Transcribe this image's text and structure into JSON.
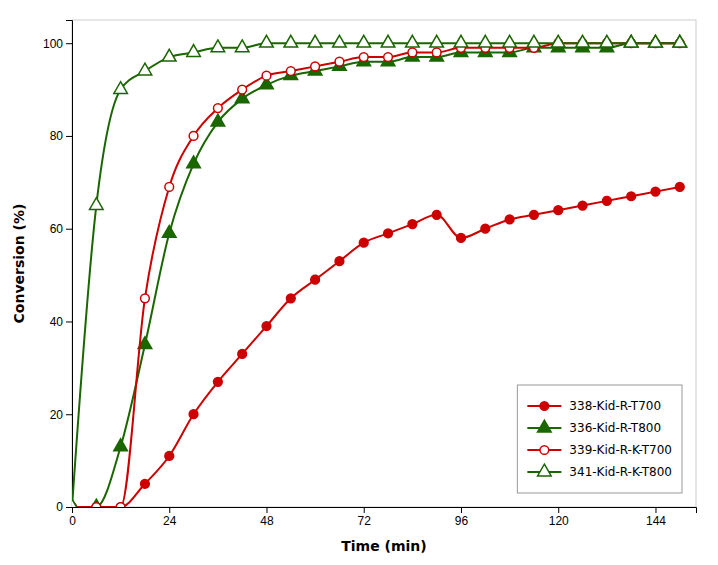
{
  "chart_data": {
    "type": "line",
    "x": [
      0,
      6,
      12,
      18,
      24,
      30,
      36,
      42,
      48,
      54,
      60,
      66,
      72,
      78,
      84,
      90,
      96,
      102,
      108,
      114,
      120,
      126,
      132,
      138,
      144,
      150
    ],
    "series": [
      {
        "name": "338-Kid-R-T700",
        "color": "#cc0000",
        "marker": "circle",
        "values": [
          0,
          0,
          0,
          5,
          11,
          20,
          27,
          33,
          39,
          45,
          49,
          53,
          57,
          59,
          61,
          63,
          58,
          60,
          62,
          63,
          64,
          65,
          66,
          67,
          68,
          69
        ]
      },
      {
        "name": "336-Kid-R-T800",
        "color": "#1a6600",
        "marker": "triangle",
        "values": [
          0,
          0,
          13,
          35,
          59,
          74,
          83,
          88,
          91,
          93,
          94,
          95,
          96,
          96,
          97,
          97,
          98,
          98,
          98,
          99,
          99,
          99,
          99,
          100,
          100,
          100
        ]
      },
      {
        "name": "339-Kid-R-K-T700",
        "color": "#cc0000",
        "marker": "circle-open",
        "values": [
          0,
          0,
          0,
          45,
          69,
          80,
          86,
          90,
          93,
          94,
          95,
          96,
          97,
          97,
          98,
          98,
          99,
          99,
          99,
          99,
          100,
          100,
          100,
          100,
          100,
          100
        ]
      },
      {
        "name": "341-Kid-R-K-T800",
        "color": "#1a6600",
        "marker": "triangle-open",
        "values": [
          0,
          65,
          90,
          94,
          97,
          98,
          99,
          99,
          100,
          100,
          100,
          100,
          100,
          100,
          100,
          100,
          100,
          100,
          100,
          100,
          100,
          100,
          100,
          100,
          100,
          100
        ]
      }
    ],
    "xlabel": "Time (min)",
    "ylabel": "Conversion (%)",
    "xlim": [
      0,
      154
    ],
    "ylim": [
      0,
      105
    ],
    "xticks": [
      0,
      24,
      48,
      72,
      96,
      120,
      144
    ],
    "yticks": [
      0,
      20,
      40,
      60,
      80,
      100
    ],
    "grid": false,
    "legend": "lower right"
  }
}
